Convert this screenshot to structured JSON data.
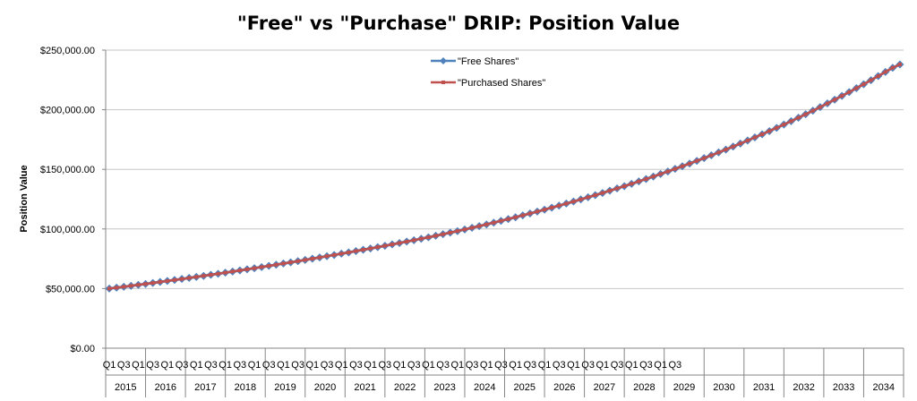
{
  "chart_data": {
    "type": "line",
    "title": "\"Free\" vs \"Purchase\" DRIP: Position Value",
    "xlabel": "",
    "ylabel": "Position Value",
    "ylim": [
      0,
      250000
    ],
    "ytick_labels": [
      "$0.00",
      "$50,000.00",
      "$100,000.00",
      "$150,000.00",
      "$200,000.00",
      "$250,000.00"
    ],
    "quarter_labels": [
      "Q1",
      "Q3"
    ],
    "years": [
      "2015",
      "2016",
      "2017",
      "2018",
      "2019",
      "2020",
      "2021",
      "2022",
      "2023",
      "2024",
      "2025",
      "2026",
      "2027",
      "2028",
      "2029",
      "2030",
      "2031",
      "2032",
      "2033",
      "2034"
    ],
    "grid": true,
    "legend_position": "top-center",
    "series": [
      {
        "name": "\"Free Shares\"",
        "color": "#4F81BD",
        "marker": "diamond",
        "values": [
          50000,
          50760,
          51530,
          52310,
          53100,
          53900,
          54710,
          55530,
          56360,
          57200,
          58050,
          58910,
          59780,
          60660,
          61550,
          62450,
          63360,
          64280,
          65210,
          66150,
          67100,
          68060,
          69030,
          70010,
          71000,
          72000,
          73010,
          74030,
          75060,
          76100,
          77150,
          78210,
          79280,
          80360,
          81450,
          82550,
          83660,
          84780,
          85910,
          87050,
          88200,
          89400,
          90600,
          91800,
          93000,
          94300,
          95600,
          96900,
          98200,
          99600,
          101000,
          102400,
          103800,
          105300,
          106800,
          108300,
          109800,
          111400,
          113000,
          114600,
          116200,
          117900,
          119600,
          121300,
          123000,
          124800,
          126600,
          128400,
          130200,
          132100,
          134000,
          135900,
          137900,
          139900,
          141900,
          144000,
          146100,
          148200,
          150400,
          152600,
          154800,
          157100,
          159400,
          161800,
          164200,
          166600,
          169100,
          171600,
          174200,
          176800,
          179400,
          182100,
          184800,
          187600,
          190400,
          193300,
          196200,
          199200,
          202200,
          205300,
          208400,
          211600,
          214800,
          218100,
          221400,
          224800,
          228200,
          231700,
          235200,
          238000
        ]
      },
      {
        "name": "\"Purchased Shares\"",
        "color": "#C0504D",
        "marker": "square",
        "values": [
          50000,
          50760,
          51530,
          52310,
          53100,
          53900,
          54710,
          55530,
          56360,
          57200,
          58050,
          58910,
          59780,
          60660,
          61550,
          62450,
          63360,
          64280,
          65210,
          66150,
          67100,
          68060,
          69030,
          70010,
          71000,
          72000,
          73010,
          74030,
          75060,
          76100,
          77150,
          78210,
          79280,
          80360,
          81450,
          82550,
          83660,
          84780,
          85910,
          87050,
          88200,
          89400,
          90600,
          91800,
          93000,
          94300,
          95600,
          96900,
          98200,
          99600,
          101000,
          102400,
          103800,
          105300,
          106800,
          108300,
          109800,
          111400,
          113000,
          114600,
          116200,
          117900,
          119600,
          121300,
          123000,
          124800,
          126600,
          128400,
          130200,
          132100,
          134000,
          135900,
          137900,
          139900,
          141900,
          144000,
          146100,
          148200,
          150400,
          152600,
          154800,
          157100,
          159400,
          161800,
          164200,
          166600,
          169100,
          171600,
          174200,
          176800,
          179400,
          182100,
          184800,
          187600,
          190400,
          193300,
          196200,
          199200,
          202200,
          205300,
          208400,
          211600,
          214800,
          218100,
          221400,
          224800,
          228200,
          231700,
          235200,
          238000
        ]
      }
    ]
  }
}
